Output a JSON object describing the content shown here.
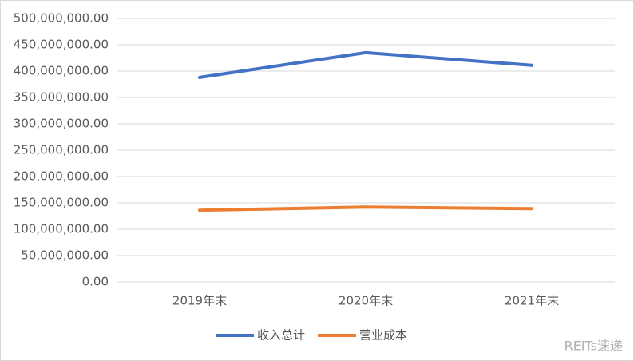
{
  "chart_data": {
    "type": "line",
    "categories": [
      "2019年末",
      "2020年末",
      "2021年末"
    ],
    "series": [
      {
        "name": "收入总计",
        "color": "#4472c4",
        "values": [
          388000000,
          435000000,
          411000000
        ]
      },
      {
        "name": "营业成本",
        "color": "#ed7d31",
        "values": [
          136000000,
          142000000,
          139000000
        ]
      }
    ],
    "ylim": [
      0,
      500000000
    ],
    "yticks": [
      {
        "value": 0,
        "label": "0.00"
      },
      {
        "value": 50000000,
        "label": "50,000,000.00"
      },
      {
        "value": 100000000,
        "label": "100,000,000.00"
      },
      {
        "value": 150000000,
        "label": "150,000,000.00"
      },
      {
        "value": 200000000,
        "label": "200,000,000.00"
      },
      {
        "value": 250000000,
        "label": "250,000,000.00"
      },
      {
        "value": 300000000,
        "label": "300,000,000.00"
      },
      {
        "value": 350000000,
        "label": "350,000,000.00"
      },
      {
        "value": 400000000,
        "label": "400,000,000.00"
      },
      {
        "value": 450000000,
        "label": "450,000,000.00"
      },
      {
        "value": 500000000,
        "label": "500,000,000.00"
      }
    ],
    "grid": true,
    "legend": "bottom",
    "watermark": "REITs速递"
  }
}
